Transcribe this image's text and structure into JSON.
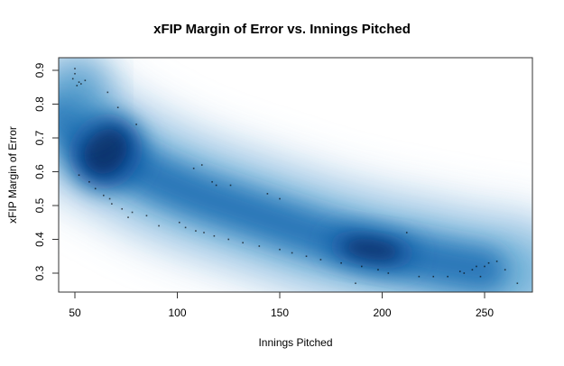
{
  "chart_data": {
    "type": "scatter",
    "subtype": "smooth-density-scatter",
    "title": "xFIP Margin of Error vs. Innings Pitched",
    "xlabel": "Innings Pitched",
    "ylabel": "xFIP Margin of Error",
    "xlim": [
      42,
      273
    ],
    "ylim": [
      0.24,
      0.93
    ],
    "x_ticks": [
      50,
      100,
      150,
      200,
      250
    ],
    "y_ticks": [
      0.3,
      0.4,
      0.5,
      0.6,
      0.7,
      0.8,
      0.9
    ],
    "x_tick_labels": [
      "50",
      "100",
      "150",
      "200",
      "250"
    ],
    "y_tick_labels": [
      "0.3",
      "0.4",
      "0.5",
      "0.6",
      "0.7",
      "0.8",
      "0.9"
    ],
    "grid": false,
    "legend": null,
    "colors": {
      "density_dark": "#08306B",
      "density_mid": "#2171B5",
      "density_light": "#C6DBEF",
      "points": "#000000"
    },
    "density_ridge": {
      "x": [
        45,
        55,
        65,
        75,
        90,
        110,
        130,
        150,
        170,
        190,
        200,
        215,
        230,
        250,
        265
      ],
      "y": [
        0.76,
        0.7,
        0.66,
        0.63,
        0.58,
        0.53,
        0.49,
        0.45,
        0.41,
        0.38,
        0.365,
        0.35,
        0.33,
        0.31,
        0.3
      ],
      "peak_regions": [
        {
          "x": 65,
          "y": 0.66,
          "intensity": 1.0
        },
        {
          "x": 195,
          "y": 0.37,
          "intensity": 0.85
        }
      ]
    },
    "outlier_points": [
      {
        "x": 50,
        "y": 0.905
      },
      {
        "x": 50,
        "y": 0.89
      },
      {
        "x": 49,
        "y": 0.875
      },
      {
        "x": 52,
        "y": 0.865
      },
      {
        "x": 53,
        "y": 0.86
      },
      {
        "x": 55,
        "y": 0.87
      },
      {
        "x": 51,
        "y": 0.855
      },
      {
        "x": 66,
        "y": 0.835
      },
      {
        "x": 71,
        "y": 0.79
      },
      {
        "x": 80,
        "y": 0.74
      },
      {
        "x": 112,
        "y": 0.62
      },
      {
        "x": 108,
        "y": 0.61
      },
      {
        "x": 117,
        "y": 0.57
      },
      {
        "x": 119,
        "y": 0.56
      },
      {
        "x": 126,
        "y": 0.56
      },
      {
        "x": 144,
        "y": 0.535
      },
      {
        "x": 150,
        "y": 0.52
      },
      {
        "x": 52,
        "y": 0.59
      },
      {
        "x": 57,
        "y": 0.57
      },
      {
        "x": 60,
        "y": 0.55
      },
      {
        "x": 64,
        "y": 0.53
      },
      {
        "x": 67,
        "y": 0.52
      },
      {
        "x": 68,
        "y": 0.505
      },
      {
        "x": 78,
        "y": 0.48
      },
      {
        "x": 73,
        "y": 0.49
      },
      {
        "x": 85,
        "y": 0.47
      },
      {
        "x": 76,
        "y": 0.465
      },
      {
        "x": 91,
        "y": 0.44
      },
      {
        "x": 101,
        "y": 0.45
      },
      {
        "x": 104,
        "y": 0.435
      },
      {
        "x": 109,
        "y": 0.425
      },
      {
        "x": 113,
        "y": 0.42
      },
      {
        "x": 118,
        "y": 0.41
      },
      {
        "x": 125,
        "y": 0.4
      },
      {
        "x": 132,
        "y": 0.39
      },
      {
        "x": 140,
        "y": 0.38
      },
      {
        "x": 150,
        "y": 0.37
      },
      {
        "x": 156,
        "y": 0.36
      },
      {
        "x": 163,
        "y": 0.35
      },
      {
        "x": 170,
        "y": 0.34
      },
      {
        "x": 180,
        "y": 0.33
      },
      {
        "x": 190,
        "y": 0.32
      },
      {
        "x": 198,
        "y": 0.31
      },
      {
        "x": 203,
        "y": 0.3
      },
      {
        "x": 187,
        "y": 0.27
      },
      {
        "x": 212,
        "y": 0.42
      },
      {
        "x": 218,
        "y": 0.29
      },
      {
        "x": 225,
        "y": 0.29
      },
      {
        "x": 232,
        "y": 0.29
      },
      {
        "x": 240,
        "y": 0.3
      },
      {
        "x": 244,
        "y": 0.31
      },
      {
        "x": 246,
        "y": 0.32
      },
      {
        "x": 250,
        "y": 0.32
      },
      {
        "x": 252,
        "y": 0.33
      },
      {
        "x": 256,
        "y": 0.335
      },
      {
        "x": 248,
        "y": 0.29
      },
      {
        "x": 260,
        "y": 0.31
      },
      {
        "x": 266,
        "y": 0.27
      },
      {
        "x": 238,
        "y": 0.305
      }
    ]
  }
}
